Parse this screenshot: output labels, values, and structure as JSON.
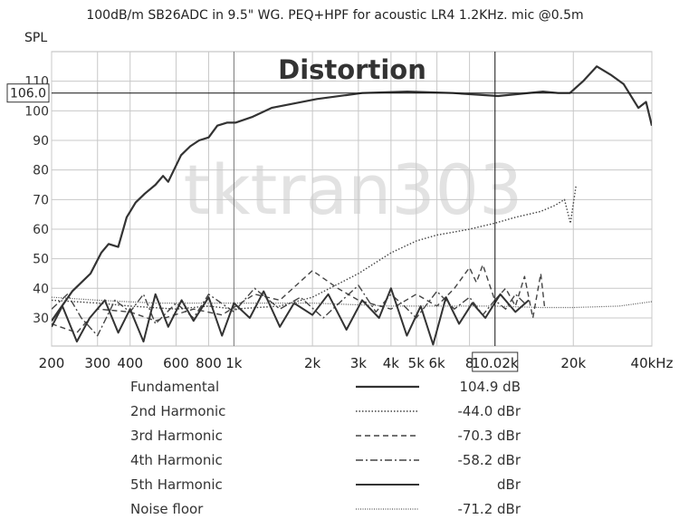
{
  "chart_data": {
    "type": "line",
    "title": "100dB/m SB26ADC in 9.5\" WG. PEQ+HPF for acoustic LR4 1.2KHz. mic @0.5m",
    "y_label": "SPL",
    "annotation": "Distortion",
    "watermark": "tktran303",
    "log_x": true,
    "grid": true,
    "xlim": [
      200,
      40000
    ],
    "xticks": [
      200,
      300,
      400,
      600,
      800,
      {
        "value": 1000,
        "label": "1k"
      },
      {
        "value": 2000,
        "label": "2k"
      },
      {
        "value": 3000,
        "label": "3k"
      },
      {
        "value": 4000,
        "label": "4k"
      },
      {
        "value": 5000,
        "label": "5k"
      },
      {
        "value": 6000,
        "label": "6k"
      },
      {
        "value": 8000,
        "label": "8"
      },
      {
        "value": 20000,
        "label": "20k"
      },
      {
        "value": 40000,
        "label": "40kHz"
      }
    ],
    "ylim": [
      20.5,
      120
    ],
    "yticks": [
      30,
      40,
      50,
      60,
      70,
      80,
      90,
      100,
      110
    ],
    "cursor": {
      "x": {
        "value": 10020,
        "label": "10.02k"
      },
      "y": {
        "value": 106.0,
        "label": "106.0"
      }
    },
    "series": [
      {
        "name": "Fundamental",
        "readout": "104.9 dB",
        "color": "#333333",
        "width": 2.2,
        "dash": "none",
        "x": [
          200,
          240,
          282,
          310,
          331,
          360,
          388,
          420,
          455,
          500,
          535,
          560,
          627,
          680,
          735,
          800,
          864,
          940,
          1014,
          1180,
          1394,
          2080,
          3100,
          4620,
          6900,
          10300,
          15300,
          17500,
          19400,
          21800,
          24600,
          28000,
          31200,
          35500,
          38000,
          40000
        ],
        "values": [
          29,
          39,
          45,
          52,
          55,
          54,
          64,
          69,
          72,
          75,
          78,
          76,
          85,
          88,
          90,
          91,
          95,
          96,
          96,
          98,
          101,
          104,
          106,
          106.5,
          106,
          105,
          106.5,
          106,
          106,
          110,
          115,
          112,
          109,
          101,
          103,
          95
        ]
      },
      {
        "name": "2nd Harmonic",
        "readout": "-44.0 dBr",
        "color": "#444444",
        "width": 1.4,
        "dash": "1.5 2",
        "x": [
          200,
          300,
          400,
          600,
          800,
          1000,
          1500,
          2000,
          3000,
          4000,
          5000,
          6000,
          8000,
          10000,
          12000,
          15000,
          17000,
          18500,
          19500,
          20500
        ],
        "values": [
          36,
          35,
          34,
          33,
          34,
          33,
          34,
          37,
          45,
          52,
          56,
          58,
          60,
          62,
          64,
          66,
          68,
          70,
          62,
          75
        ]
      },
      {
        "name": "3rd Harmonic",
        "readout": "-70.3 dBr",
        "color": "#444444",
        "width": 1.4,
        "dash": "6 4",
        "x": [
          200,
          250,
          300,
          400,
          500,
          700,
          900,
          1200,
          1500,
          2000,
          2500,
          3000,
          4000,
          5000,
          6000,
          7000,
          8000,
          8500,
          9000,
          10000,
          11000,
          12000,
          13000,
          14000,
          15000,
          15500
        ],
        "values": [
          28,
          25,
          33,
          32,
          29,
          33,
          31,
          38,
          36,
          46,
          40,
          36,
          33,
          38,
          34,
          40,
          47,
          42,
          48,
          36,
          40,
          34,
          44,
          30,
          45,
          34
        ]
      },
      {
        "name": "4th Harmonic",
        "readout": "-58.2 dBr",
        "color": "#444444",
        "width": 1.4,
        "dash": "8 3 2 3",
        "x": [
          200,
          230,
          260,
          300,
          350,
          400,
          450,
          500,
          600,
          700,
          800,
          1000,
          1200,
          1500,
          1800,
          2200,
          2600,
          3000,
          3500,
          4000,
          4500,
          5000,
          6000,
          7000,
          8000,
          9000,
          10000,
          11000,
          12000,
          13000
        ],
        "values": [
          33,
          38,
          30,
          24,
          36,
          32,
          38,
          28,
          35,
          30,
          38,
          32,
          40,
          33,
          37,
          30,
          36,
          41,
          32,
          38,
          34,
          30,
          39,
          33,
          37,
          31,
          36,
          33,
          38,
          35
        ]
      },
      {
        "name": "5th Harmonic",
        "readout": "dBr",
        "color": "#333333",
        "width": 2,
        "dash": "none",
        "x": [
          200,
          220,
          250,
          280,
          320,
          360,
          400,
          450,
          500,
          560,
          630,
          700,
          800,
          900,
          1000,
          1150,
          1300,
          1500,
          1700,
          2000,
          2300,
          2700,
          3100,
          3600,
          4000,
          4600,
          5200,
          5800,
          6500,
          7300,
          8200,
          9200,
          10500,
          12000,
          13500
        ],
        "values": [
          27,
          34,
          22,
          30,
          36,
          25,
          33,
          22,
          38,
          27,
          36,
          29,
          37,
          24,
          35,
          30,
          39,
          27,
          35,
          31,
          38,
          26,
          36,
          30,
          40,
          24,
          34,
          21,
          37,
          28,
          35,
          30,
          38,
          32,
          36
        ]
      },
      {
        "name": "Noise floor",
        "readout": "-71.2 dBr",
        "color": "#555555",
        "width": 1.2,
        "dash": "1 1.5",
        "x": [
          200,
          300,
          500,
          800,
          1000,
          2000,
          4000,
          7000,
          10000,
          15000,
          20000,
          30000,
          40000
        ],
        "values": [
          37,
          36,
          35,
          35,
          35,
          35,
          34,
          34,
          34,
          33.5,
          33.5,
          34,
          35.5
        ]
      }
    ]
  }
}
